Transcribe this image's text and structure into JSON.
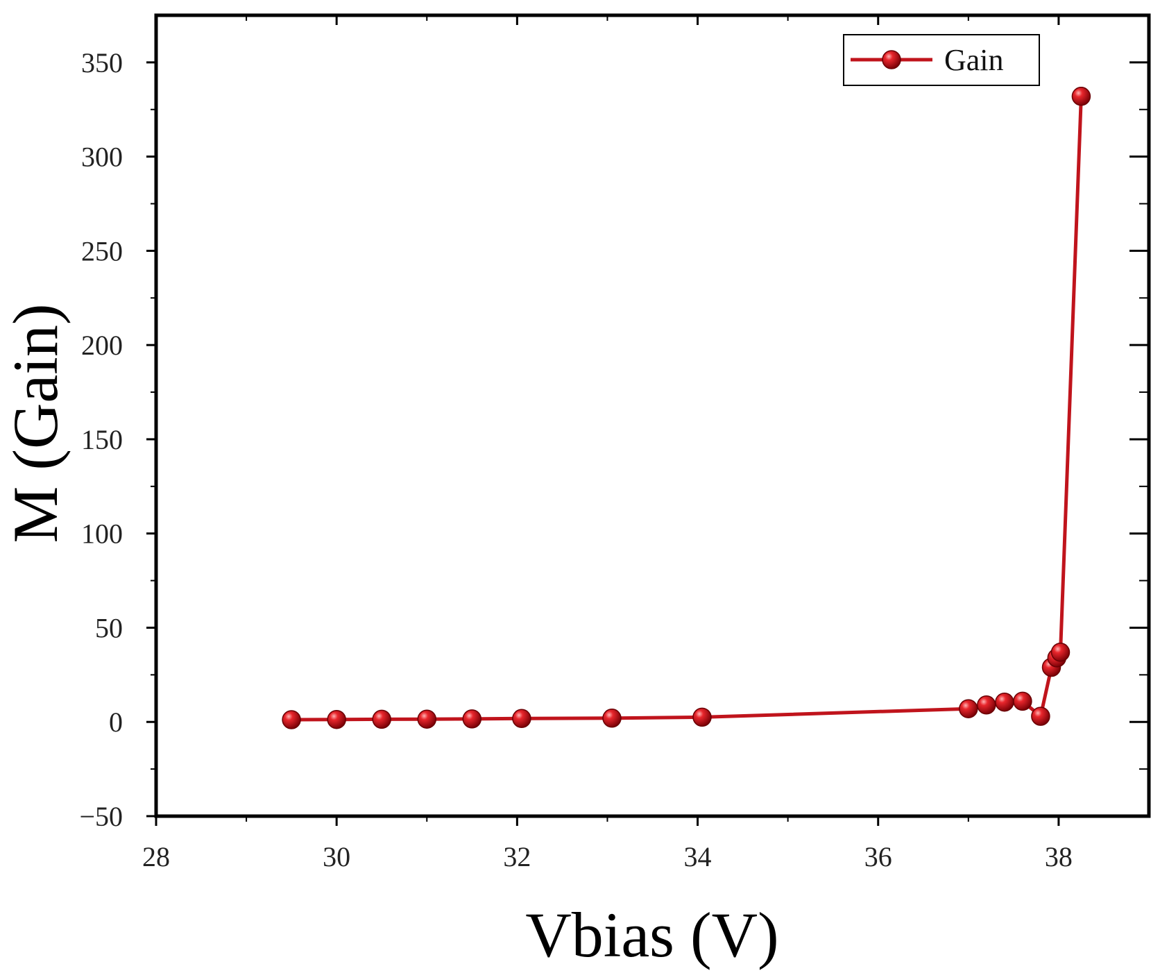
{
  "chart_data": {
    "type": "line",
    "title": "",
    "xlabel": "Vbias (V)",
    "ylabel": "M (Gain)",
    "xlim": [
      28,
      39
    ],
    "ylim": [
      -50,
      375
    ],
    "xticks": [
      28,
      30,
      32,
      34,
      36,
      38
    ],
    "yticks": [
      -50,
      0,
      50,
      100,
      150,
      200,
      250,
      300,
      350
    ],
    "ytick_labels": [
      "−50",
      "0",
      "50",
      "100",
      "150",
      "200",
      "250",
      "300",
      "350"
    ],
    "grid": false,
    "legend_position": "top-right",
    "series": [
      {
        "name": "Gain",
        "color": "#c0141c",
        "marker": "sphere",
        "x": [
          29.5,
          30.0,
          30.5,
          31.0,
          31.5,
          32.05,
          33.05,
          34.05,
          37.0,
          37.2,
          37.4,
          37.6,
          37.8,
          37.92,
          37.98,
          38.02,
          38.25
        ],
        "y": [
          1.2,
          1.3,
          1.4,
          1.5,
          1.6,
          1.8,
          2.0,
          2.5,
          7.0,
          9.0,
          10.5,
          11.0,
          3.0,
          29.0,
          34.0,
          37.0,
          332.0
        ]
      }
    ]
  }
}
